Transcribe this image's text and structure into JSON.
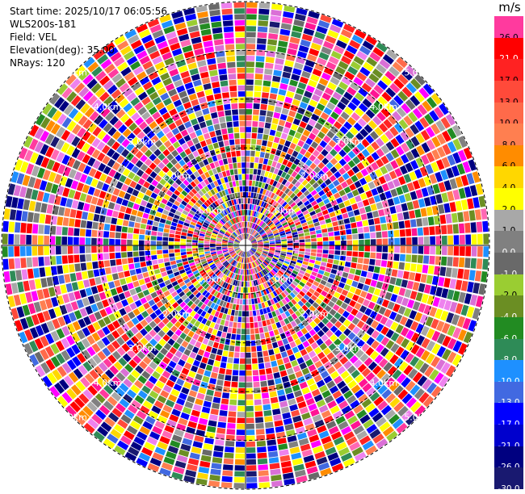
{
  "header": {
    "start_time": "Start time: 2025/10/17 06:05:56",
    "instrument": "WLS200s-181",
    "field": "Field: VEL",
    "elevation": "Elevation(deg): 35.00",
    "nrays": "NRays: 120"
  },
  "colorbar": {
    "unit": "m/s",
    "levels": [
      {
        "label": "26.0",
        "color": "#ff3a9e"
      },
      {
        "label": "21.0",
        "color": "#ff0000"
      },
      {
        "label": "17.0",
        "color": "#ff2222"
      },
      {
        "label": "13.0",
        "color": "#ff4a3a"
      },
      {
        "label": "10.0",
        "color": "#ff6a4a"
      },
      {
        "label": "8.0",
        "color": "#ff7f50"
      },
      {
        "label": "6.0",
        "color": "#ff8c00"
      },
      {
        "label": "4.0",
        "color": "#ffd700"
      },
      {
        "label": "2.0",
        "color": "#ffff00"
      },
      {
        "label": "1.0",
        "color": "#a8a8a8"
      },
      {
        "label": "0.0",
        "color": "#808080"
      },
      {
        "label": "-1.0",
        "color": "#696969"
      },
      {
        "label": "-2.0",
        "color": "#9acd32"
      },
      {
        "label": "-4.0",
        "color": "#6b8e23"
      },
      {
        "label": "-6.0",
        "color": "#228b22"
      },
      {
        "label": "-8.0",
        "color": "#2e8b57"
      },
      {
        "label": "-10.0",
        "color": "#1e90ff"
      },
      {
        "label": "-13.0",
        "color": "#4169e1"
      },
      {
        "label": "-17.0",
        "color": "#0000ff"
      },
      {
        "label": "-21.0",
        "color": "#0000cd"
      },
      {
        "label": "-26.0",
        "color": "#000080"
      },
      {
        "label": "-30.0",
        "color": "#191970"
      }
    ]
  },
  "chart_data": {
    "type": "ppi",
    "field": "VEL",
    "units": "m/s",
    "nrays": 120,
    "range_ring_labels": [
      "1.0km",
      "2.0km",
      "3.0km",
      "4.0km",
      "5.0km"
    ],
    "data_note_colors_only": true
  }
}
